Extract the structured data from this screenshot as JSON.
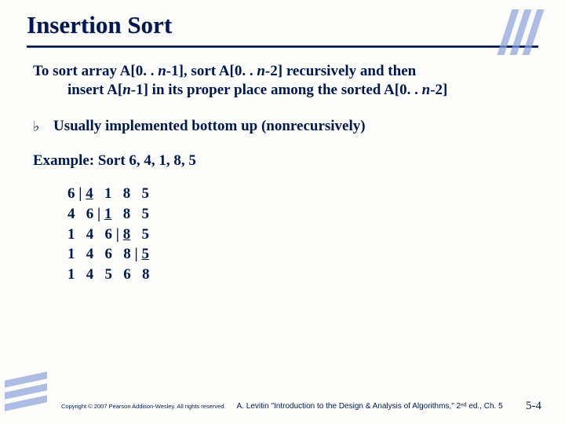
{
  "title": "Insertion Sort",
  "desc_line1_prefix": "To sort array A[0. . ",
  "desc_line1_mid1": "-1], sort A[0. . ",
  "desc_line1_mid2": "-2] recursively and then",
  "desc_line2_prefix": "insert A[",
  "desc_line2_mid": "-1] in its proper place among the sorted A[0. . ",
  "desc_line2_suffix": "-2]",
  "n": "n",
  "bullet_glyph": "♭",
  "bullet_text": "Usually implemented bottom up (nonrecursively)",
  "example_label": "Example:   Sort  6,  4,  1,  8,  5",
  "trace": {
    "rows": [
      {
        "cells": [
          "6",
          "|",
          "4",
          " ",
          "1",
          " ",
          "8",
          " ",
          "5"
        ],
        "pipe_after_index": 0,
        "underline_index": 2
      },
      {
        "cells": [
          "4",
          " ",
          "6",
          "|",
          "1",
          " ",
          "8",
          " ",
          "5"
        ],
        "pipe_after_index": 2,
        "underline_index": 4
      },
      {
        "cells": [
          "1",
          " ",
          "4",
          " ",
          "6",
          "|",
          "8",
          " ",
          "5"
        ],
        "pipe_after_index": 4,
        "underline_index": 6
      },
      {
        "cells": [
          "1",
          " ",
          "4",
          " ",
          "6",
          " ",
          "8",
          "|",
          "5"
        ],
        "pipe_after_index": 6,
        "underline_index": 8
      },
      {
        "cells": [
          "1",
          " ",
          "4",
          " ",
          "5",
          " ",
          "6",
          " ",
          "8"
        ],
        "pipe_after_index": -1,
        "underline_index": -1
      }
    ]
  },
  "footer": {
    "copyright": "Copyright © 2007 Pearson Addison-Wesley. All rights reserved.",
    "attribution": "A. Levitin \"Introduction to the Design & Analysis of Algorithms,\" 2ⁿᵈ ed., Ch. 5",
    "pagenum": "5-4"
  },
  "colors": {
    "background": "#fdfdfb",
    "text": "#001850",
    "accent_bar": "#8aa0d8"
  }
}
